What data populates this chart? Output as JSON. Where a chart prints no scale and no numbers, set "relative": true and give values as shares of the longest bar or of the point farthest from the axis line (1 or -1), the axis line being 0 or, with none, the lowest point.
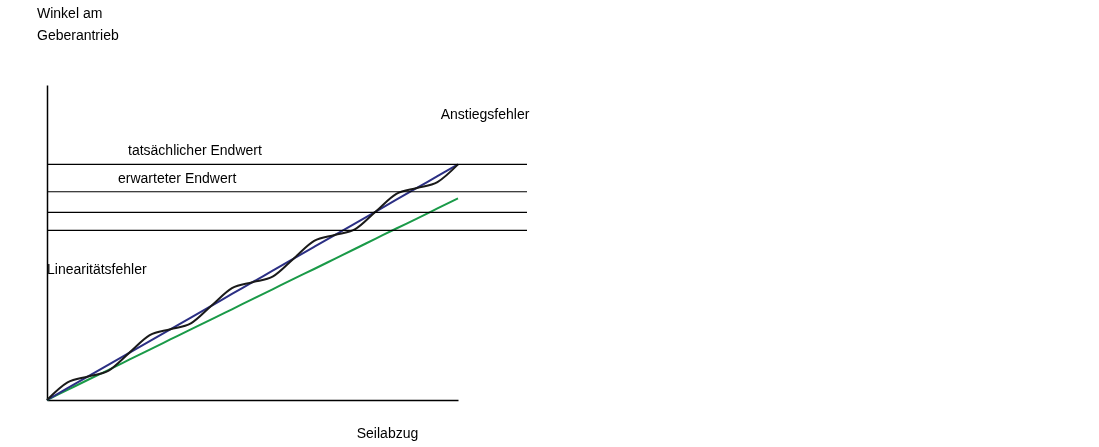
{
  "chart_data": {
    "type": "line",
    "relative": true,
    "xlabel": "Seilabzug",
    "categories": [
      null,
      null,
      null,
      null,
      null,
      null,
      null,
      null,
      null,
      null,
      null,
      null,
      null,
      null,
      null,
      null,
      null,
      null,
      null,
      null,
      null
    ],
    "series": [
      {
        "color": "#1a9a48",
        "values": [
          0,
          0.043,
          0.086,
          0.128,
          0.171,
          0.214,
          0.257,
          0.3,
          0.342,
          0.385,
          0.428,
          0.471,
          0.514,
          0.556,
          0.599,
          0.642,
          0.685,
          0.728,
          0.77,
          0.813,
          0.856
        ]
      },
      {
        "color": "#2b2f84",
        "values": [
          0,
          0.05,
          0.1,
          0.15,
          0.2,
          0.25,
          0.3,
          0.35,
          0.4,
          0.45,
          0.5,
          0.55,
          0.6,
          0.65,
          0.7,
          0.75,
          0.8,
          0.85,
          0.9,
          0.95,
          1
        ]
      },
      {
        "color": "#1a1a1a",
        "values": [
          0,
          0.075,
          0.1,
          0.125,
          0.2,
          0.275,
          0.3,
          0.325,
          0.4,
          0.475,
          0.5,
          0.525,
          0.6,
          0.675,
          0.7,
          0.725,
          0.8,
          0.875,
          0.9,
          0.925,
          1
        ]
      }
    ],
    "ref_lines": [
      {
        "axis": "y",
        "value": 1,
        "label": "tatsächlicher Endwert"
      },
      {
        "axis": "y",
        "value": 0.884,
        "label": "erwarteter Endwert"
      },
      {
        "axis": "y",
        "value": 0.796
      },
      {
        "axis": "y",
        "value": 0.72
      }
    ],
    "annotations": [
      "Anstiegsfehler",
      "Linearitätsfehler",
      "Winkel am Geberantrieb"
    ]
  }
}
